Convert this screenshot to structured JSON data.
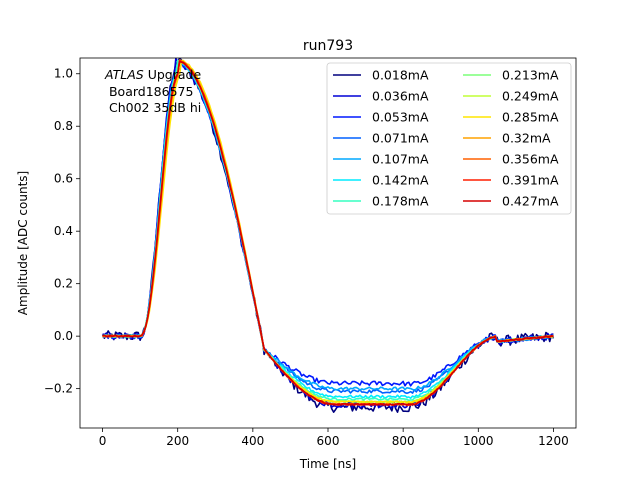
{
  "chart_data": {
    "type": "line",
    "title": "run793",
    "xlabel": "Time [ns]",
    "ylabel": "Amplitude [ADC counts]",
    "xlim": [
      -60,
      1260
    ],
    "ylim": [
      -0.35,
      1.06
    ],
    "xticks": [
      0,
      200,
      400,
      600,
      800,
      1000,
      1200
    ],
    "yticks": [
      -0.2,
      0.0,
      0.2,
      0.4,
      0.6,
      0.8,
      1.0
    ],
    "xtick_labels": [
      "0",
      "200",
      "400",
      "600",
      "800",
      "1000",
      "1200"
    ],
    "ytick_labels": [
      "−0.2",
      "0.0",
      "0.2",
      "0.4",
      "0.6",
      "0.8",
      "1.0"
    ],
    "grid": false,
    "legend_position": "top-right",
    "legend_columns": 2,
    "annotation": {
      "line1_italic": "ATLAS",
      "line1_rest": " Upgrade",
      "line2": " Board186575",
      "line3": " Ch002 35dB hi"
    },
    "series": [
      {
        "name": "0.018mA",
        "color": "#00007f",
        "peak_time": 195,
        "undershoot": 0.27,
        "noise": 0.02
      },
      {
        "name": "0.036mA",
        "color": "#0000d5",
        "peak_time": 195,
        "undershoot": 0.26,
        "noise": 0.013
      },
      {
        "name": "0.053mA",
        "color": "#0018ff",
        "peak_time": 196,
        "undershoot": 0.18,
        "noise": 0.009
      },
      {
        "name": "0.071mA",
        "color": "#0060ff",
        "peak_time": 197,
        "undershoot": 0.21,
        "noise": 0.007
      },
      {
        "name": "0.107mA",
        "color": "#00a8ff",
        "peak_time": 198,
        "undershoot": 0.2,
        "noise": 0.006
      },
      {
        "name": "0.142mA",
        "color": "#00ecff",
        "peak_time": 199,
        "undershoot": 0.23,
        "noise": 0.005
      },
      {
        "name": "0.178mA",
        "color": "#36ffc1",
        "peak_time": 200,
        "undershoot": 0.24,
        "noise": 0.004
      },
      {
        "name": "0.213mA",
        "color": "#7cff79",
        "peak_time": 201,
        "undershoot": 0.25,
        "noise": 0.004
      },
      {
        "name": "0.249mA",
        "color": "#c1ff36",
        "peak_time": 202,
        "undershoot": 0.25,
        "noise": 0.003
      },
      {
        "name": "0.285mA",
        "color": "#ffe500",
        "peak_time": 210,
        "undershoot": 0.25,
        "noise": 0.003
      },
      {
        "name": "0.32mA",
        "color": "#ffa200",
        "peak_time": 205,
        "undershoot": 0.26,
        "noise": 0.003
      },
      {
        "name": "0.356mA",
        "color": "#ff6000",
        "peak_time": 204,
        "undershoot": 0.26,
        "noise": 0.003
      },
      {
        "name": "0.391mA",
        "color": "#ff1e00",
        "peak_time": 203,
        "undershoot": 0.26,
        "noise": 0.003
      },
      {
        "name": "0.427mA",
        "color": "#d50000",
        "peak_time": 202,
        "undershoot": 0.26,
        "noise": 0.003
      }
    ]
  }
}
